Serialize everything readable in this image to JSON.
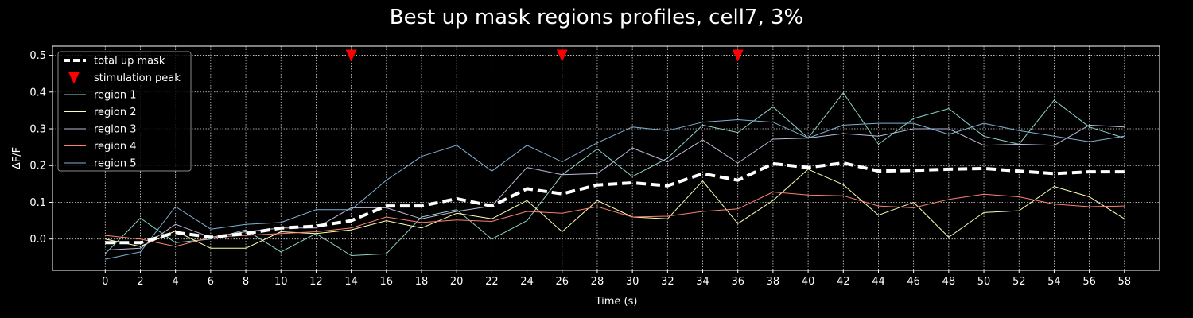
{
  "chart_data": {
    "type": "line",
    "title": "Best up mask regions profiles, cell7, 3%",
    "xlabel": "Time (s)",
    "ylabel": "ΔF/F",
    "xlim": [
      -3,
      60
    ],
    "ylim": [
      -0.085,
      0.525
    ],
    "xticks": [
      0,
      2,
      4,
      6,
      8,
      10,
      12,
      14,
      16,
      18,
      20,
      22,
      24,
      26,
      28,
      30,
      32,
      34,
      36,
      38,
      40,
      42,
      44,
      46,
      48,
      50,
      52,
      54,
      56,
      58
    ],
    "yticks": [
      0.0,
      0.1,
      0.2,
      0.3,
      0.4,
      0.5
    ],
    "ytick_labels": [
      "0.0",
      "0.1",
      "0.2",
      "0.3",
      "0.4",
      "0.5"
    ],
    "grid": true,
    "legend_position": "top-left",
    "x": [
      0,
      2,
      4,
      6,
      8,
      10,
      12,
      14,
      16,
      18,
      20,
      22,
      24,
      26,
      28,
      30,
      32,
      34,
      36,
      38,
      40,
      42,
      44,
      46,
      48,
      50,
      52,
      54,
      56,
      58
    ],
    "series": [
      {
        "name": "total up mask",
        "color": "#ffffff",
        "style": "dashed",
        "values": [
          -0.01,
          -0.01,
          0.018,
          0.005,
          0.015,
          0.03,
          0.035,
          0.05,
          0.09,
          0.09,
          0.11,
          0.09,
          0.137,
          0.123,
          0.147,
          0.153,
          0.145,
          0.178,
          0.16,
          0.205,
          0.195,
          0.207,
          0.185,
          0.187,
          0.19,
          0.192,
          0.185,
          0.178,
          0.183,
          0.183
        ]
      },
      {
        "name": "region 1",
        "color": "#8dd3c7",
        "values": [
          -0.04,
          0.057,
          -0.01,
          0.0,
          0.025,
          -0.035,
          0.015,
          -0.045,
          -0.04,
          0.06,
          0.08,
          0.0,
          0.05,
          0.175,
          0.245,
          0.17,
          0.22,
          0.31,
          0.29,
          0.36,
          0.275,
          0.398,
          0.258,
          0.328,
          0.355,
          0.28,
          0.258,
          0.378,
          0.305,
          0.275
        ]
      },
      {
        "name": "region 2",
        "color": "#ffffb3",
        "values": [
          0.0,
          -0.02,
          0.022,
          -0.025,
          -0.025,
          0.02,
          0.015,
          0.025,
          0.05,
          0.03,
          0.07,
          0.055,
          0.105,
          0.02,
          0.105,
          0.06,
          0.055,
          0.158,
          0.042,
          0.105,
          0.19,
          0.148,
          0.065,
          0.1,
          0.005,
          0.072,
          0.077,
          0.143,
          0.115,
          0.055
        ]
      },
      {
        "name": "region 3",
        "color": "#bebada",
        "values": [
          -0.03,
          -0.025,
          0.04,
          0.005,
          0.02,
          0.03,
          0.03,
          0.085,
          0.085,
          0.055,
          0.075,
          0.09,
          0.195,
          0.175,
          0.178,
          0.248,
          0.21,
          0.27,
          0.207,
          0.272,
          0.275,
          0.287,
          0.28,
          0.3,
          0.3,
          0.255,
          0.258,
          0.255,
          0.31,
          0.305
        ]
      },
      {
        "name": "region 4",
        "color": "#fb8072",
        "values": [
          0.01,
          0.0,
          -0.02,
          0.005,
          0.01,
          0.015,
          0.02,
          0.03,
          0.06,
          0.045,
          0.052,
          0.048,
          0.075,
          0.07,
          0.088,
          0.06,
          0.062,
          0.075,
          0.082,
          0.128,
          0.12,
          0.118,
          0.09,
          0.085,
          0.108,
          0.122,
          0.115,
          0.095,
          0.088,
          0.09
        ]
      },
      {
        "name": "region 5",
        "color": "#80b1d3",
        "values": [
          -0.055,
          -0.035,
          0.088,
          0.027,
          0.04,
          0.045,
          0.08,
          0.08,
          0.16,
          0.225,
          0.255,
          0.185,
          0.255,
          0.21,
          0.262,
          0.305,
          0.295,
          0.318,
          0.325,
          0.318,
          0.275,
          0.31,
          0.315,
          0.315,
          0.285,
          0.315,
          0.295,
          0.28,
          0.265,
          0.28
        ]
      }
    ],
    "markers": {
      "name": "stimulation peak",
      "color": "#ff0000",
      "shape": "triangle-down",
      "x": [
        14,
        26,
        36
      ],
      "y": [
        0.5,
        0.5,
        0.5
      ]
    },
    "legend_order": [
      "total up mask",
      "stimulation peak",
      "region 1",
      "region 2",
      "region 3",
      "region 4",
      "region 5"
    ]
  }
}
